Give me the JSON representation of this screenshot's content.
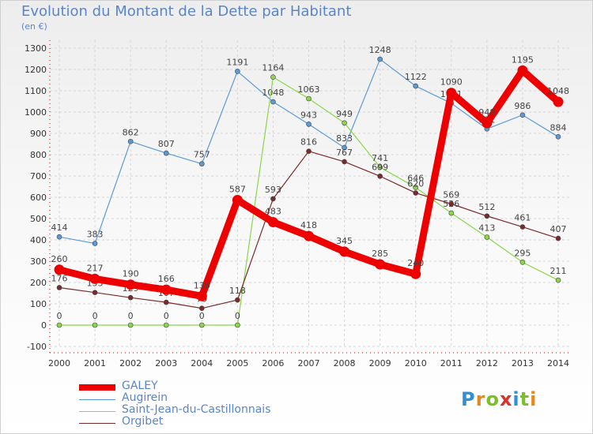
{
  "title": "Evolution du Montant de la Dette par Habitant",
  "subtitle": "(en €)",
  "logo": [
    "P",
    "r",
    "o",
    "x",
    "i",
    "t",
    "i"
  ],
  "logo_colors": [
    "#2f8fd8",
    "#e8871e",
    "#7cbf2c",
    "#d8332a",
    "#2f8fd8",
    "#7cbf2c",
    "#e8871e"
  ],
  "chart_data": {
    "type": "line",
    "title": "Evolution du Montant de la Dette par Habitant",
    "ylabel": "(en €)",
    "x": [
      "2000",
      "2001",
      "2002",
      "2003",
      "2004",
      "2005",
      "2006",
      "2007",
      "2008",
      "2009",
      "2010",
      "2011",
      "2012",
      "2013",
      "2014"
    ],
    "ylim": [
      -100,
      1300
    ],
    "yticks": [
      -100,
      0,
      100,
      200,
      300,
      400,
      500,
      600,
      700,
      800,
      900,
      1000,
      1100,
      1200,
      1300
    ],
    "grid": true,
    "legend_position": "bottom-left",
    "series": [
      {
        "name": "GALEY",
        "color": "#ee0000",
        "values": [
          260,
          217,
          190,
          166,
          136,
          587,
          483,
          418,
          345,
          285,
          240,
          1090,
          948,
          1195,
          1048
        ]
      },
      {
        "name": "Augirein",
        "color": "#5b9bd5",
        "values": [
          414,
          383,
          862,
          807,
          757,
          1191,
          1048,
          943,
          833,
          1248,
          1122,
          1041,
          921,
          986,
          884
        ]
      },
      {
        "name": "Saint-Jean-du-Castillonnais",
        "color": "#8cd64a",
        "values": [
          0,
          0,
          0,
          0,
          0,
          0,
          1164,
          1063,
          949,
          741,
          646,
          526,
          413,
          295,
          211
        ]
      },
      {
        "name": "Orgibet",
        "color": "#7a2a2a",
        "values": [
          176,
          153,
          129,
          107,
          79,
          118,
          593,
          816,
          767,
          699,
          620,
          569,
          512,
          461,
          407
        ]
      }
    ]
  }
}
